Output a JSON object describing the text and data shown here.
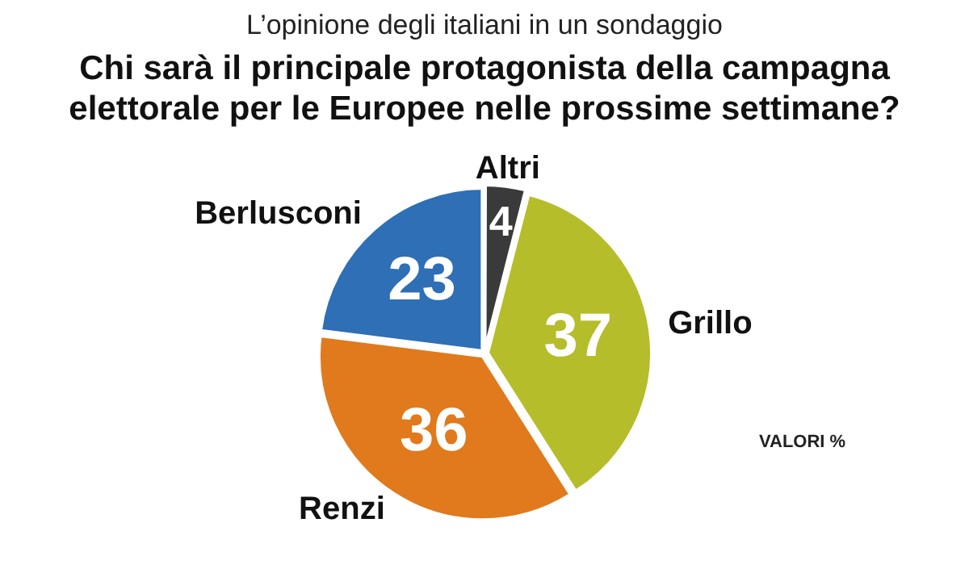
{
  "chart_data": {
    "type": "pie",
    "subtitle": "L’opinione degli italiani in un sondaggio",
    "title": "Chi sarà il principale protagonista della campagna elettorale per le Europee nelle prossime settimane?",
    "categories": [
      "Altri",
      "Grillo",
      "Renzi",
      "Berlusconi"
    ],
    "values": [
      4,
      37,
      36,
      23
    ],
    "colors": [
      "#3a3a3a",
      "#b5bd2a",
      "#e07a1c",
      "#2e6fb5"
    ],
    "data_labels": true,
    "legend": false,
    "annotations": [
      "VALORI %"
    ]
  }
}
